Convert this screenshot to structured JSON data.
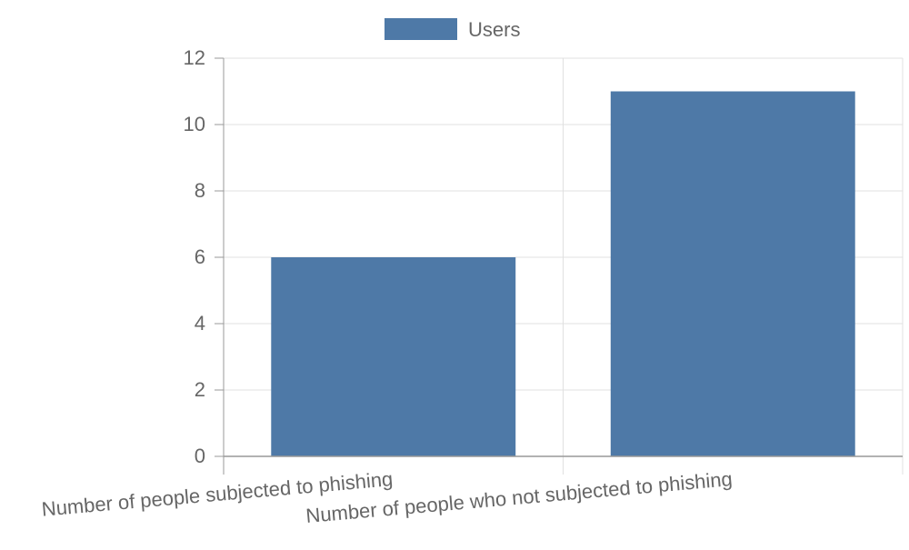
{
  "chart_data": {
    "type": "bar",
    "categories": [
      "Number of people subjected to phishing",
      "Number of people who not subjected to phishing"
    ],
    "series": [
      {
        "name": "Users",
        "values": [
          6,
          11
        ]
      }
    ],
    "ylim": [
      0,
      12
    ],
    "y_ticks": [
      0,
      2,
      4,
      6,
      8,
      10,
      12
    ],
    "grid": true,
    "legend": {
      "position": "top",
      "label": "Users"
    },
    "colors": {
      "bar": "#4e79a7",
      "grid": "#e0e0e0",
      "axis": "#999999",
      "text": "#666666"
    }
  }
}
